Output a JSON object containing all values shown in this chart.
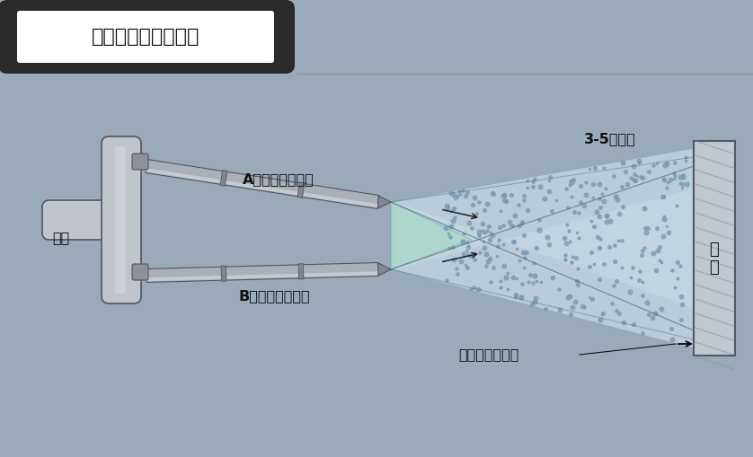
{
  "bg_color": "#9BAAB8",
  "title_box_text": "丙烯酸盐喷膜示意图",
  "title_box_bg": "#ffffff",
  "title_box_border": "#2a2a2a",
  "title_outer_bg": "#2a2a2a",
  "label_gun": "喷枪",
  "label_A": "A组份（氧化剂）",
  "label_B": "B组份（还原剂）",
  "label_polymerize": "3-5秒聚合",
  "label_membrane": "丙烯酸盐防水膜",
  "label_base_1": "基",
  "label_base_2": "面",
  "spray_dot_color": "#7a9ab0",
  "gun_fill": "#c0c5cc",
  "gun_edge": "#555560",
  "pipe_fill": "#aab0b8",
  "pipe_edge": "#555560",
  "pipe_ring_fill": "#80858e",
  "cone_fill": "#c5d8e5",
  "cone_edge": "#8aabb8",
  "base_fill": "#c0c8d0",
  "base_edge": "#555566",
  "base_stripe": "#8090a0",
  "line_color": "#888888",
  "text_color": "#111111"
}
